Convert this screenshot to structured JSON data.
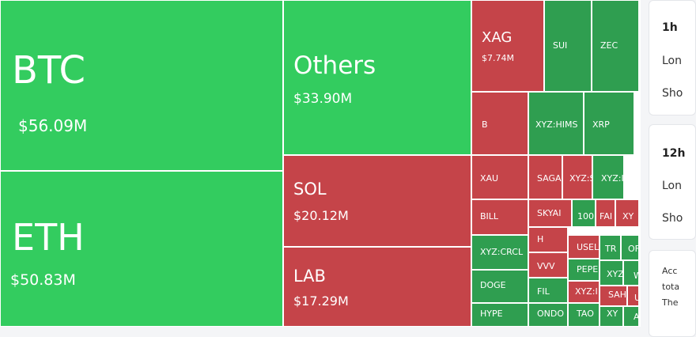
{
  "colors": {
    "up": "#33cc5f",
    "upDark": "#2f9e50",
    "down": "#c54449",
    "white": "#ffffff"
  },
  "treemap": {
    "tiles": [
      {
        "symbol": "BTC",
        "value": "$56.09M",
        "dir": "up"
      },
      {
        "symbol": "ETH",
        "value": "$50.83M",
        "dir": "up"
      },
      {
        "symbol": "Others",
        "value": "$33.90M",
        "dir": "up"
      },
      {
        "symbol": "SOL",
        "value": "$20.12M",
        "dir": "down"
      },
      {
        "symbol": "LAB",
        "value": "$17.29M",
        "dir": "down"
      },
      {
        "symbol": "XAG",
        "value": "$7.74M",
        "dir": "down"
      },
      {
        "symbol": "SUI",
        "value": "",
        "dir": "up"
      },
      {
        "symbol": "ZEC",
        "value": "",
        "dir": "up"
      },
      {
        "symbol": "B",
        "value": "",
        "dir": "down"
      },
      {
        "symbol": "XYZ:HIMS",
        "value": "",
        "dir": "up"
      },
      {
        "symbol": "XRP",
        "value": "",
        "dir": "up"
      },
      {
        "symbol": "XAU",
        "value": "",
        "dir": "down"
      },
      {
        "symbol": "SAGA",
        "value": "",
        "dir": "down"
      },
      {
        "symbol": "XYZ:S",
        "value": "",
        "dir": "down"
      },
      {
        "symbol": "XYZ:I",
        "value": "",
        "dir": "up"
      },
      {
        "symbol": "BILL",
        "value": "",
        "dir": "down"
      },
      {
        "symbol": "SKYAI",
        "value": "",
        "dir": "down"
      },
      {
        "symbol": "100",
        "value": "",
        "dir": "up"
      },
      {
        "symbol": "FAI",
        "value": "",
        "dir": "down"
      },
      {
        "symbol": "XY",
        "value": "",
        "dir": "down"
      },
      {
        "symbol": "XYZ:CRCL",
        "value": "",
        "dir": "up"
      },
      {
        "symbol": "H",
        "value": "",
        "dir": "down"
      },
      {
        "symbol": "USEL",
        "value": "",
        "dir": "down"
      },
      {
        "symbol": "TR",
        "value": "",
        "dir": "up"
      },
      {
        "symbol": "OF",
        "value": "",
        "dir": "up"
      },
      {
        "symbol": "VVV",
        "value": "",
        "dir": "down"
      },
      {
        "symbol": "PEPE",
        "value": "",
        "dir": "up"
      },
      {
        "symbol": "XYZ",
        "value": "",
        "dir": "up"
      },
      {
        "symbol": "W",
        "value": "",
        "dir": "up"
      },
      {
        "symbol": "DOGE",
        "value": "",
        "dir": "up"
      },
      {
        "symbol": "FIL",
        "value": "",
        "dir": "up"
      },
      {
        "symbol": "XYZ:I",
        "value": "",
        "dir": "down"
      },
      {
        "symbol": "SAH",
        "value": "",
        "dir": "down"
      },
      {
        "symbol": "U",
        "value": "",
        "dir": "down"
      },
      {
        "symbol": "HYPE",
        "value": "",
        "dir": "up"
      },
      {
        "symbol": "ONDO",
        "value": "",
        "dir": "up"
      },
      {
        "symbol": "TAO",
        "value": "",
        "dir": "up"
      },
      {
        "symbol": "XY",
        "value": "",
        "dir": "up"
      },
      {
        "symbol": "A",
        "value": "",
        "dir": "up"
      }
    ]
  },
  "sidebar": {
    "card1": {
      "title": "1h",
      "long": "Lon",
      "short": "Sho"
    },
    "card2": {
      "title": "12h",
      "long": "Lon",
      "short": "Sho"
    },
    "card3": {
      "line1": "Acc",
      "line2": "tota",
      "line3": "The"
    }
  }
}
